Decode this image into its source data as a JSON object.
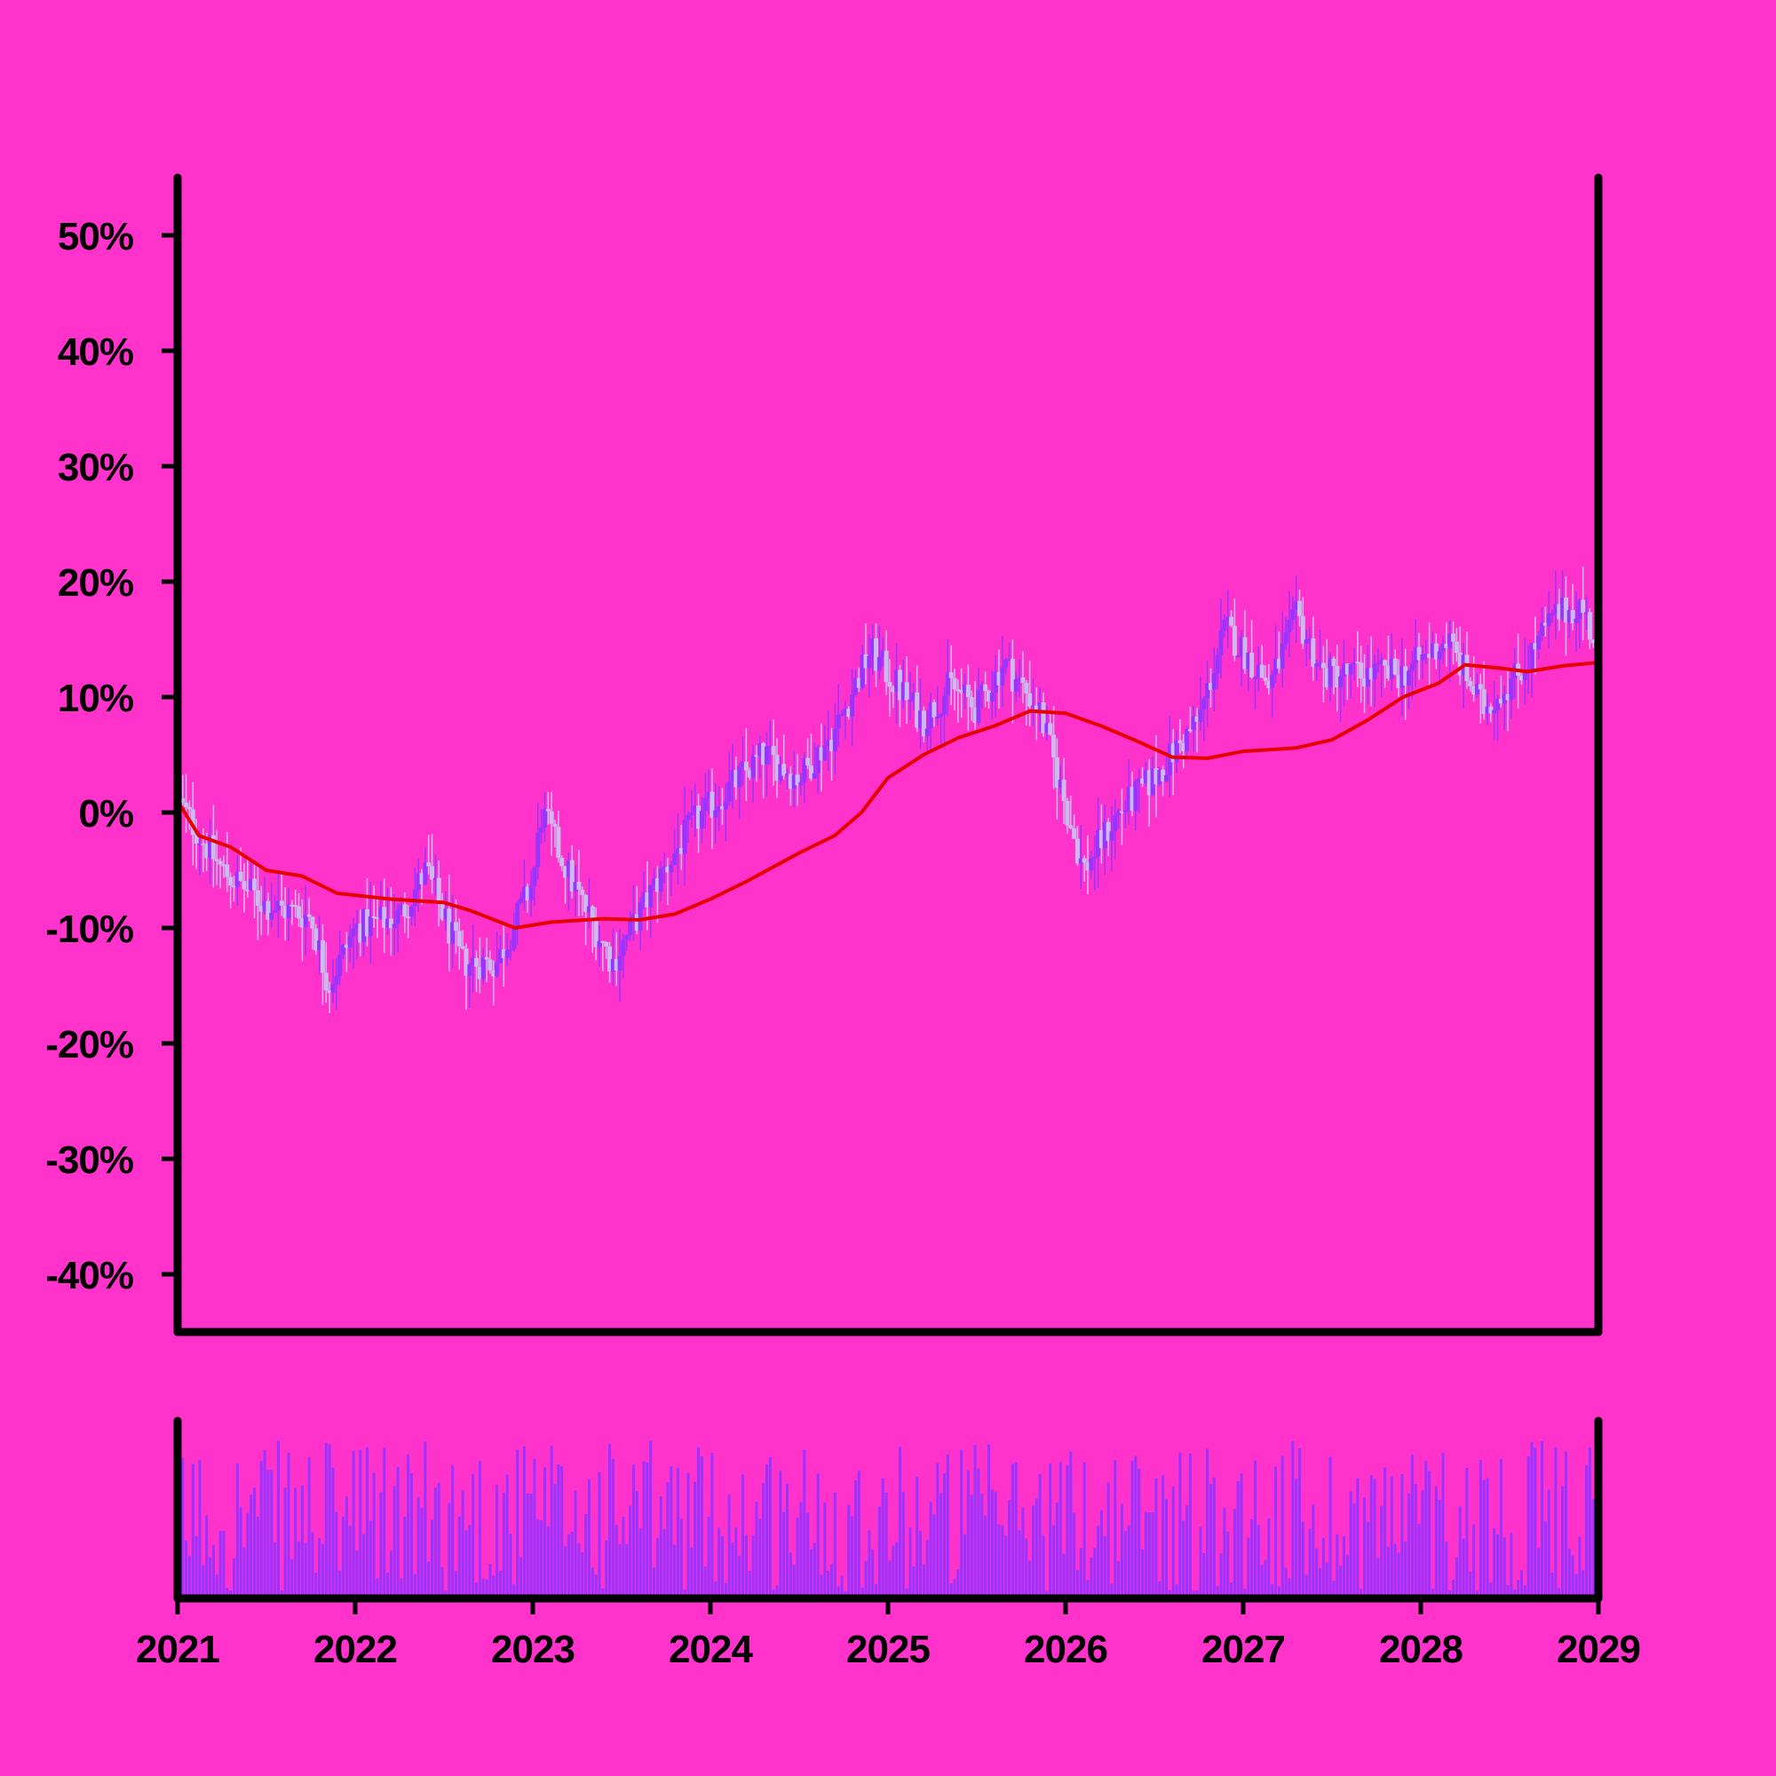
{
  "chart_data": {
    "type": "candlestick",
    "background_color": "#ff33cc",
    "up_color": "#9933ff",
    "down_color": "#ccbbee",
    "ma_color": "#e60000",
    "volume_color": "#9933ff",
    "y_tick_labels": [
      "50%",
      "40%",
      "30%",
      "20%",
      "10%",
      "0%",
      "-10%",
      "-20%",
      "-30%",
      "-40%"
    ],
    "y_ticks": [
      50,
      40,
      30,
      20,
      10,
      0,
      -10,
      -20,
      -30,
      -40
    ],
    "ylim": [
      -45,
      55
    ],
    "x_tick_labels": [
      "2021",
      "2022",
      "2023",
      "2024",
      "2025",
      "2026",
      "2027",
      "2028",
      "2029"
    ],
    "xlim": [
      2021,
      2029
    ],
    "grid": false,
    "price_path": [
      {
        "x": 2021.0,
        "y": 1
      },
      {
        "x": 2021.25,
        "y": -5
      },
      {
        "x": 2021.5,
        "y": -8
      },
      {
        "x": 2021.75,
        "y": -9
      },
      {
        "x": 2021.85,
        "y": -15
      },
      {
        "x": 2022.0,
        "y": -10
      },
      {
        "x": 2022.25,
        "y": -9
      },
      {
        "x": 2022.4,
        "y": -5
      },
      {
        "x": 2022.6,
        "y": -13
      },
      {
        "x": 2022.8,
        "y": -13
      },
      {
        "x": 2023.0,
        "y": -6
      },
      {
        "x": 2023.05,
        "y": 0
      },
      {
        "x": 2023.25,
        "y": -7
      },
      {
        "x": 2023.45,
        "y": -13
      },
      {
        "x": 2023.7,
        "y": -6
      },
      {
        "x": 2023.9,
        "y": -1
      },
      {
        "x": 2024.1,
        "y": 2
      },
      {
        "x": 2024.3,
        "y": 5
      },
      {
        "x": 2024.5,
        "y": 3
      },
      {
        "x": 2024.7,
        "y": 7
      },
      {
        "x": 2024.9,
        "y": 14
      },
      {
        "x": 2025.2,
        "y": 8
      },
      {
        "x": 2025.35,
        "y": 11
      },
      {
        "x": 2025.5,
        "y": 9
      },
      {
        "x": 2025.65,
        "y": 13
      },
      {
        "x": 2025.85,
        "y": 9
      },
      {
        "x": 2026.1,
        "y": -5
      },
      {
        "x": 2026.3,
        "y": 0
      },
      {
        "x": 2026.5,
        "y": 3
      },
      {
        "x": 2026.75,
        "y": 8
      },
      {
        "x": 2026.9,
        "y": 16
      },
      {
        "x": 2027.15,
        "y": 11
      },
      {
        "x": 2027.3,
        "y": 17
      },
      {
        "x": 2027.45,
        "y": 12
      },
      {
        "x": 2027.7,
        "y": 12
      },
      {
        "x": 2027.9,
        "y": 12
      },
      {
        "x": 2028.15,
        "y": 15
      },
      {
        "x": 2028.35,
        "y": 9
      },
      {
        "x": 2028.55,
        "y": 12
      },
      {
        "x": 2028.75,
        "y": 17
      },
      {
        "x": 2028.9,
        "y": 18
      },
      {
        "x": 2029.0,
        "y": 14
      }
    ],
    "moving_average": [
      {
        "x": 2021.0,
        "y": 1
      },
      {
        "x": 2021.12,
        "y": -2
      },
      {
        "x": 2021.3,
        "y": -3
      },
      {
        "x": 2021.5,
        "y": -5
      },
      {
        "x": 2021.7,
        "y": -5.5
      },
      {
        "x": 2021.9,
        "y": -7
      },
      {
        "x": 2022.2,
        "y": -7.5
      },
      {
        "x": 2022.5,
        "y": -7.8
      },
      {
        "x": 2022.65,
        "y": -8.5
      },
      {
        "x": 2022.9,
        "y": -10
      },
      {
        "x": 2023.1,
        "y": -9.5
      },
      {
        "x": 2023.4,
        "y": -9.2
      },
      {
        "x": 2023.6,
        "y": -9.3
      },
      {
        "x": 2023.8,
        "y": -8.8
      },
      {
        "x": 2024.0,
        "y": -7.5
      },
      {
        "x": 2024.2,
        "y": -6
      },
      {
        "x": 2024.5,
        "y": -3.5
      },
      {
        "x": 2024.7,
        "y": -2
      },
      {
        "x": 2024.85,
        "y": 0
      },
      {
        "x": 2025.0,
        "y": 3
      },
      {
        "x": 2025.2,
        "y": 5
      },
      {
        "x": 2025.4,
        "y": 6.5
      },
      {
        "x": 2025.6,
        "y": 7.5
      },
      {
        "x": 2025.8,
        "y": 8.8
      },
      {
        "x": 2026.0,
        "y": 8.6
      },
      {
        "x": 2026.2,
        "y": 7.5
      },
      {
        "x": 2026.4,
        "y": 6.2
      },
      {
        "x": 2026.6,
        "y": 4.8
      },
      {
        "x": 2026.8,
        "y": 4.7
      },
      {
        "x": 2027.0,
        "y": 5.3
      },
      {
        "x": 2027.3,
        "y": 5.6
      },
      {
        "x": 2027.5,
        "y": 6.3
      },
      {
        "x": 2027.7,
        "y": 8
      },
      {
        "x": 2027.9,
        "y": 10
      },
      {
        "x": 2028.1,
        "y": 11.2
      },
      {
        "x": 2028.25,
        "y": 12.8
      },
      {
        "x": 2028.45,
        "y": 12.5
      },
      {
        "x": 2028.6,
        "y": 12.2
      },
      {
        "x": 2028.8,
        "y": 12.7
      },
      {
        "x": 2029.0,
        "y": 13
      }
    ]
  }
}
